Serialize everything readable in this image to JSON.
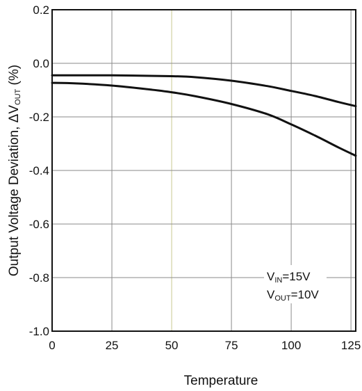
{
  "chart_data": {
    "type": "line",
    "title": "",
    "xlabel": "Temperature",
    "ylabel_parts": [
      "Output Voltage Deviation, ",
      "ΔV",
      "OUT",
      " (%)"
    ],
    "xlim": [
      0,
      127
    ],
    "ylim": [
      -1.0,
      0.2
    ],
    "x_ticks": [
      0,
      25,
      50,
      75,
      100,
      125
    ],
    "x_tick_labels": [
      "0",
      "25",
      "50",
      "75",
      "100",
      "125"
    ],
    "y_ticks": [
      0.2,
      0.0,
      -0.2,
      -0.4,
      -0.6,
      -0.8,
      -1.0
    ],
    "y_tick_labels": [
      "0.2",
      "0.0",
      "-0.2",
      "-0.4",
      "-0.6",
      "-0.8",
      "-1.0"
    ],
    "grid": true,
    "grid_color": "#8a8a8a",
    "grid_highlight_color": "#c8c890",
    "grid_highlight_x": 50,
    "series": [
      {
        "line_color": "#111111",
        "x": [
          0,
          25,
          50,
          60,
          75,
          90,
          100,
          110,
          120,
          127
        ],
        "values": [
          -0.045,
          -0.045,
          -0.048,
          -0.052,
          -0.065,
          -0.085,
          -0.103,
          -0.122,
          -0.145,
          -0.16
        ]
      },
      {
        "line_color": "#111111",
        "x": [
          0,
          10,
          25,
          40,
          50,
          60,
          75,
          90,
          100,
          110,
          120,
          127
        ],
        "values": [
          -0.073,
          -0.075,
          -0.083,
          -0.097,
          -0.108,
          -0.123,
          -0.152,
          -0.19,
          -0.228,
          -0.27,
          -0.315,
          -0.345
        ]
      }
    ],
    "annotation": {
      "line1_main": "V",
      "line1_sub": "IN",
      "line1_rest": "=15V",
      "line2_main": "V",
      "line2_sub": "OUT",
      "line2_rest": "=10V",
      "position": "bottom-right"
    }
  }
}
